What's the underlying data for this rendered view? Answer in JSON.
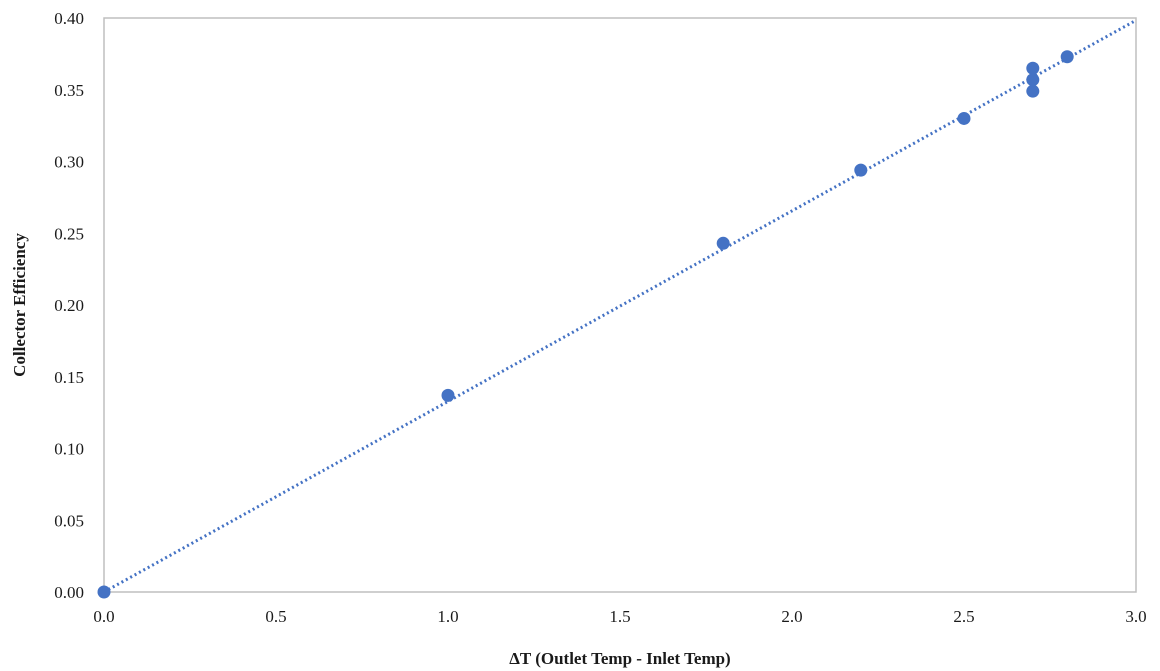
{
  "chart_data": {
    "type": "scatter",
    "title": "",
    "xlabel": "ΔT (Outlet Temp - Inlet Temp)",
    "ylabel": "Collector Efficiency",
    "xlim": [
      0,
      3.0
    ],
    "ylim": [
      0,
      0.4
    ],
    "x_ticks": [
      "0.0",
      "0.5",
      "1.0",
      "1.5",
      "2.0",
      "2.5",
      "3.0"
    ],
    "y_ticks": [
      "0.00",
      "0.05",
      "0.10",
      "0.15",
      "0.20",
      "0.25",
      "0.30",
      "0.35",
      "0.40"
    ],
    "grid": false,
    "legend": "none",
    "series": [
      {
        "points": [
          {
            "x": 0.0,
            "y": 0.0
          },
          {
            "x": 1.0,
            "y": 0.137
          },
          {
            "x": 1.8,
            "y": 0.243
          },
          {
            "x": 2.2,
            "y": 0.294
          },
          {
            "x": 2.5,
            "y": 0.33
          },
          {
            "x": 2.7,
            "y": 0.349
          },
          {
            "x": 2.7,
            "y": 0.357
          },
          {
            "x": 2.7,
            "y": 0.365
          },
          {
            "x": 2.8,
            "y": 0.373
          }
        ]
      }
    ],
    "trendline": {
      "type": "linear",
      "style": "dotted",
      "x_range": [
        0,
        3.0
      ],
      "slope": 0.1328,
      "intercept": 0
    },
    "colors": {
      "marker": "#4472C4",
      "trendline": "#4472C4",
      "axis": "#bfbfbf"
    }
  }
}
